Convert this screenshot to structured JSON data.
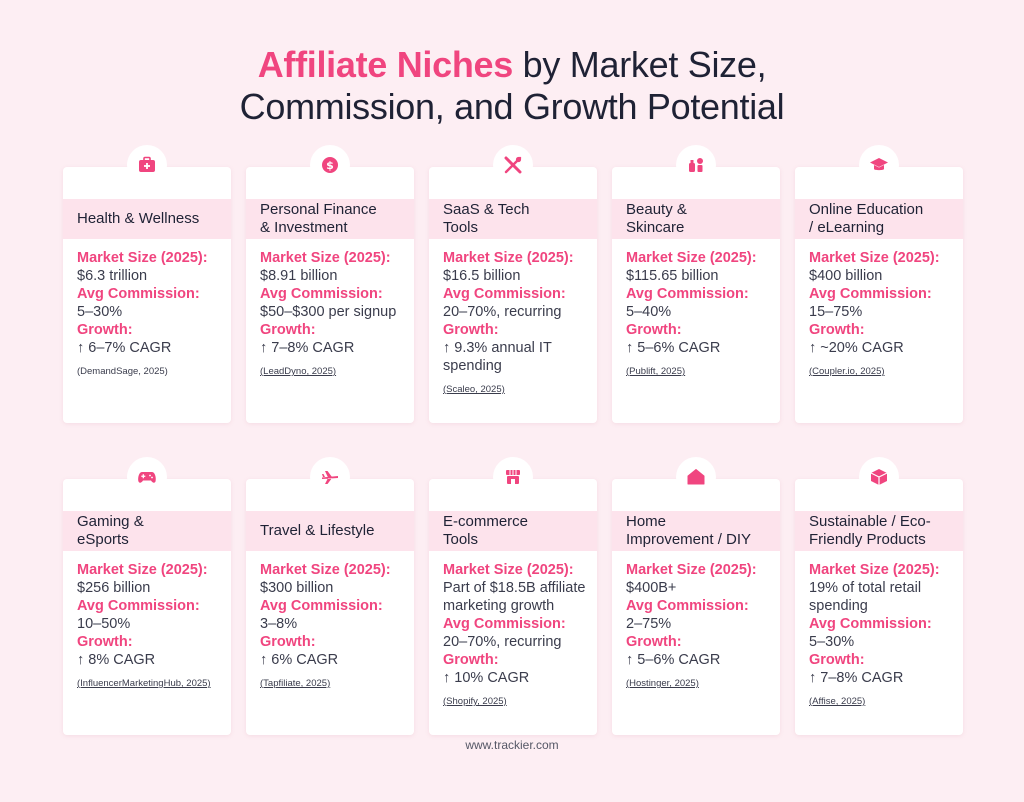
{
  "title": {
    "highlight": "Affiliate Niches",
    "rest_line1": " by Market Size,",
    "line2": "Commission, and Growth Potential"
  },
  "labels": {
    "market": "Market Size (2025):",
    "commission": "Avg Commission:",
    "growth": "Growth:"
  },
  "cards": [
    {
      "name": "Health & Wellness",
      "icon": "medical-kit-icon",
      "market": "$6.3 trillion",
      "commission": "5–30%",
      "growth": "↑ 6–7% CAGR",
      "source": "(DemandSage, 2025)",
      "source_underline": false
    },
    {
      "name": "Personal Finance\n& Investment",
      "icon": "dollar-coin-icon",
      "market": "$8.91 billion",
      "commission": "$50–$300 per signup",
      "growth": "↑ 7–8% CAGR",
      "source": "(LeadDyno, 2025)",
      "source_underline": true
    },
    {
      "name": "SaaS & Tech\nTools",
      "icon": "tools-icon",
      "market": "$16.5 billion",
      "commission": "20–70%, recurring",
      "growth": "↑ 9.3% annual IT spending",
      "source": "(Scaleo, 2025)",
      "source_underline": true
    },
    {
      "name": "Beauty &\nSkincare",
      "icon": "cosmetics-icon",
      "market": "$115.65 billion",
      "commission": "5–40%",
      "growth": "↑ 5–6% CAGR",
      "source": "(Publift, 2025)",
      "source_underline": true
    },
    {
      "name": "Online Education\n/ eLearning",
      "icon": "graduation-cap-icon",
      "market": "$400 billion",
      "commission": " 15–75%",
      "growth": "↑ ~20% CAGR",
      "source": "(Coupler.io, 2025)",
      "source_underline": true
    },
    {
      "name": "Gaming &\neSports",
      "icon": "gamepad-icon",
      "market": "$256 billion",
      "commission": "10–50%",
      "growth": "↑ 8% CAGR",
      "source": "(InfluencerMarketingHub, 2025)",
      "source_underline": true
    },
    {
      "name": "Travel & Lifestyle",
      "icon": "airplane-icon",
      "market": "$300 billion",
      "commission": "3–8%",
      "growth": "↑ 6% CAGR",
      "source": "(Tapfiliate, 2025)",
      "source_underline": true
    },
    {
      "name": "E-commerce\nTools",
      "icon": "storefront-icon",
      "market": "Part of $18.5B affiliate marketing growth",
      "commission": "20–70%, recurring",
      "growth": "↑ 10% CAGR",
      "source": "(Shopify, 2025)",
      "source_underline": true
    },
    {
      "name": "Home\nImprovement / DIY",
      "icon": "house-icon",
      "market": "$400B+",
      "commission": "2–75%",
      "growth": "↑ 5–6% CAGR",
      "source": "(Hostinger, 2025)",
      "source_underline": true
    },
    {
      "name": "Sustainable / Eco-\nFriendly Products",
      "icon": "box-icon",
      "market": "19% of total retail spending",
      "commission": "5–30%",
      "growth": "↑ 7–8% CAGR",
      "source": "(Affise, 2025)",
      "source_underline": true
    }
  ],
  "colors": {
    "accent": "#f0457f",
    "background": "#fdeef3",
    "header_band": "#fde3ec"
  },
  "footer": "www.trackier.com"
}
